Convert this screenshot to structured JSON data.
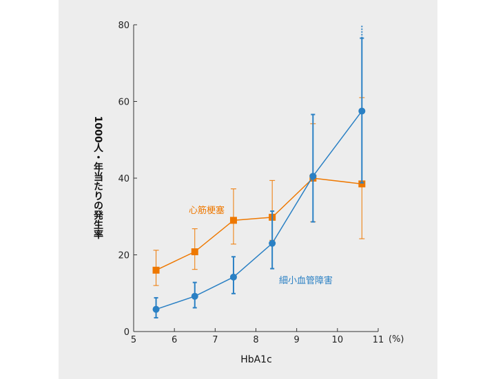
{
  "chart_data": {
    "type": "line",
    "xlabel": "HbA1c",
    "x_unit": "(%)",
    "ylabel": "1000人・年当たりの発生率",
    "xlim": [
      5,
      11
    ],
    "ylim": [
      0,
      80
    ],
    "x_ticks": [
      5,
      6,
      7,
      8,
      9,
      10,
      11
    ],
    "y_ticks": [
      0,
      20,
      40,
      60,
      80
    ],
    "grid": false,
    "series": [
      {
        "name": "心筋梗塞",
        "color": "#ee7800",
        "marker": "square",
        "x": [
          5.55,
          6.5,
          7.45,
          8.4,
          9.4,
          10.6
        ],
        "y": [
          16,
          20.8,
          29,
          29.8,
          40,
          38.5
        ],
        "err_low": [
          12,
          16.2,
          22.8,
          23.8,
          28.6,
          24.2
        ],
        "err_high": [
          21.2,
          26.8,
          37.2,
          39.4,
          54.2,
          61
        ]
      },
      {
        "name": "細小血管障害",
        "color": "#2a80c4",
        "marker": "circle",
        "x": [
          5.55,
          6.5,
          7.45,
          8.4,
          9.4,
          10.6
        ],
        "y": [
          5.8,
          9.2,
          14.2,
          23,
          40.5,
          57.5
        ],
        "err_low": [
          3.6,
          6.2,
          9.9,
          16.4,
          28.6,
          38.8
        ],
        "err_high": [
          8.8,
          12.8,
          19.5,
          31.4,
          56.6,
          76.5
        ]
      }
    ]
  }
}
